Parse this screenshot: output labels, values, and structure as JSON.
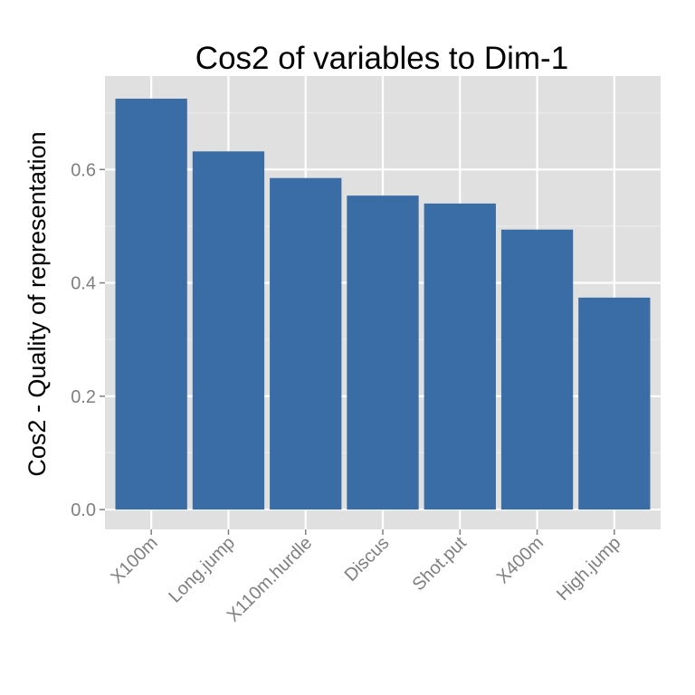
{
  "chart_data": {
    "type": "bar",
    "title": "Cos2 of variables to Dim-1",
    "xlabel": "",
    "ylabel": "Cos2 - Quality of representation",
    "categories": [
      "X100m",
      "Long.jump",
      "X110m.hurdle",
      "Discus",
      "Shot.put",
      "X400m",
      "High.jump"
    ],
    "values": [
      0.725,
      0.632,
      0.585,
      0.554,
      0.54,
      0.494,
      0.374
    ],
    "ylim": [
      -0.035,
      0.765
    ],
    "yticks": [
      0.0,
      0.2,
      0.4,
      0.6
    ],
    "ytick_labels": [
      "0.0",
      "0.2",
      "0.4",
      "0.6"
    ],
    "grid": true,
    "colors": {
      "bar": "#3A6DA5",
      "panel": "#E0E0E0",
      "grid_major": "#FFFFFF",
      "grid_minor": "#EBEBEB",
      "tick_text": "#7F7F7F"
    }
  }
}
